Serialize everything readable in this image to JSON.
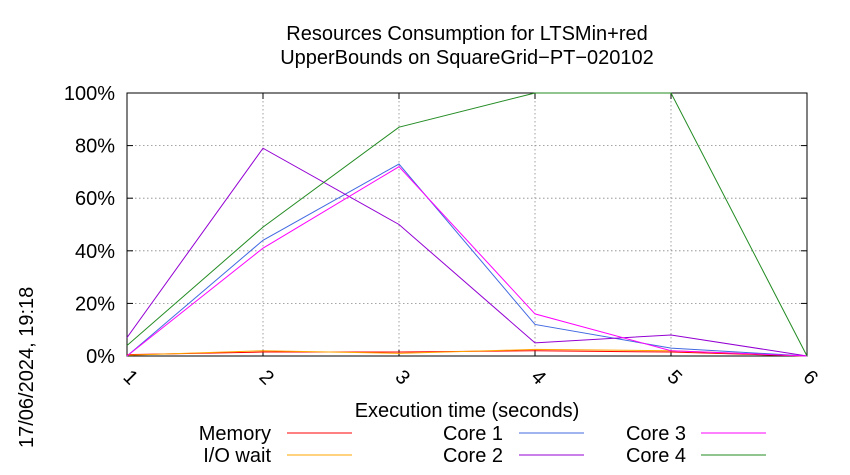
{
  "chart_data": {
    "type": "line",
    "title": [
      "Resources Consumption for LTSMin+red",
      "UpperBounds on SquareGrid−PT−020102"
    ],
    "xlabel": "Execution time (seconds)",
    "ylabel": "",
    "x": [
      1,
      2,
      3,
      4,
      5,
      6
    ],
    "x_tick_labels": [
      "1",
      "2",
      "3",
      "4",
      "5",
      "6"
    ],
    "y_tick_labels": [
      "0%",
      "20%",
      "40%",
      "60%",
      "80%",
      "100%"
    ],
    "xlim": [
      1,
      6
    ],
    "ylim": [
      0,
      100
    ],
    "grid": true,
    "legend_position": "bottom",
    "series": [
      {
        "name": "Memory",
        "color": "#ff0000",
        "values": [
          0.5,
          1.5,
          1.5,
          2.0,
          1.5,
          0
        ]
      },
      {
        "name": "I/O wait",
        "color": "#ffa500",
        "values": [
          0.3,
          2.0,
          1.0,
          2.5,
          2.0,
          0
        ]
      },
      {
        "name": "Core 1",
        "color": "#4169e1",
        "values": [
          0,
          44,
          73,
          12,
          3,
          0
        ]
      },
      {
        "name": "Core 2",
        "color": "#9400d3",
        "values": [
          7,
          79,
          50,
          5,
          8,
          0
        ]
      },
      {
        "name": "Core 3",
        "color": "#ff00ff",
        "values": [
          0,
          41,
          72,
          16,
          2,
          0
        ]
      },
      {
        "name": "Core 4",
        "color": "#228b22",
        "values": [
          4,
          49,
          87,
          100,
          100,
          0
        ]
      }
    ]
  },
  "timestamp": "17/06/2024, 19:18"
}
